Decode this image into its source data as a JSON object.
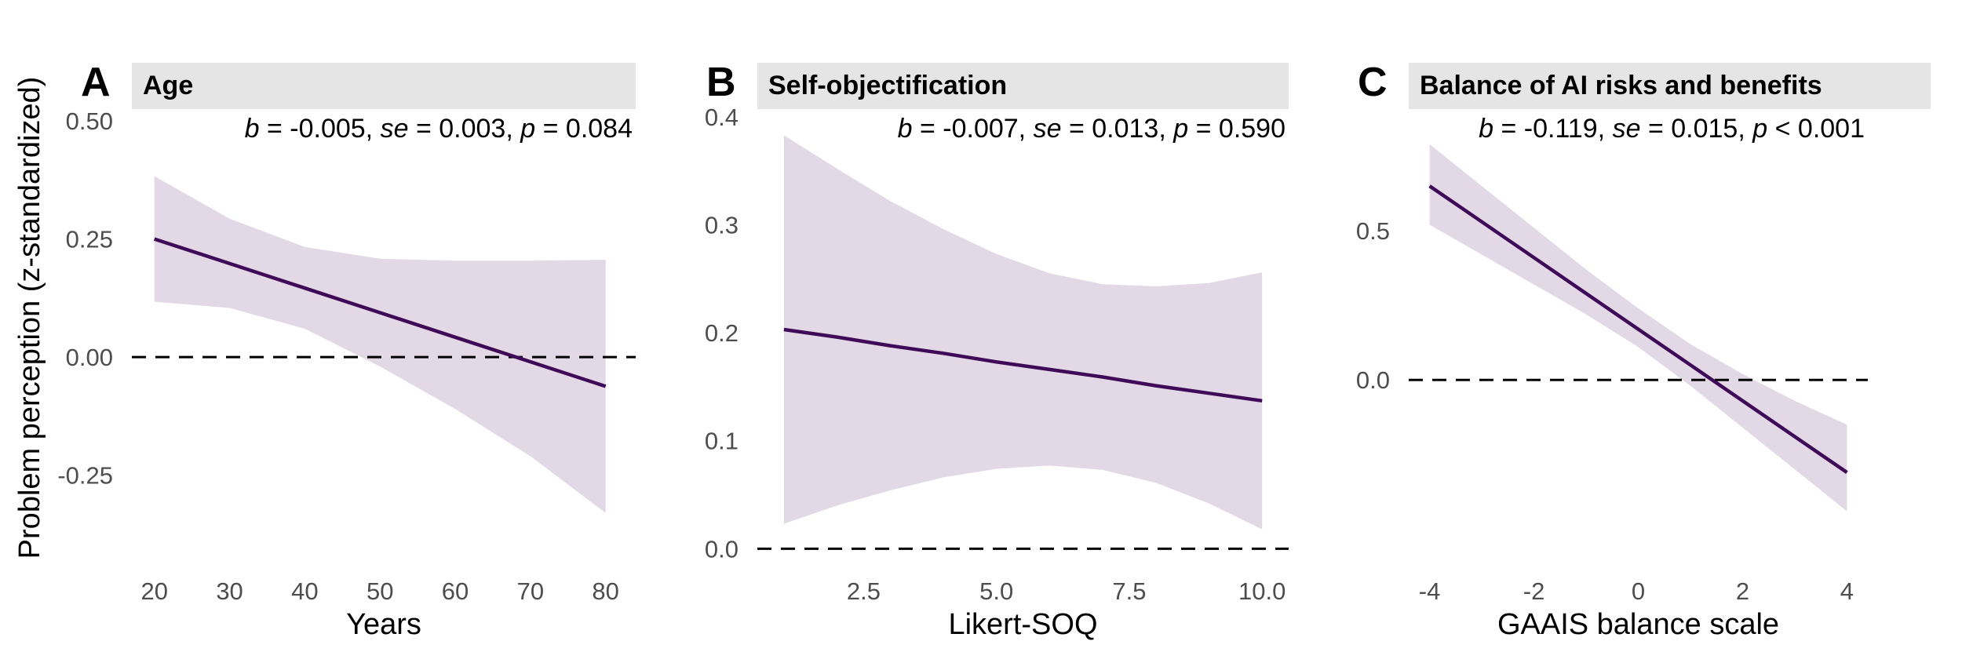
{
  "y_axis_label": "Problem perception (z-standardized)",
  "colors": {
    "line": "#3f0a57",
    "ribbon": "#e3d9e6",
    "strip": "#e5e5e5",
    "zero_line": "#000000"
  },
  "chart_data": [
    {
      "type": "line",
      "tag": "A",
      "title": "Age",
      "stat": {
        "b": "-0.005",
        "se": "0.003",
        "p_op": "=",
        "p": "0.084"
      },
      "xlabel": "Years",
      "ylabel": "Problem perception (z-standardized)",
      "xlim": [
        17,
        84
      ],
      "ylim": [
        -0.44,
        0.52
      ],
      "xticks": [
        20,
        30,
        40,
        50,
        60,
        70,
        80
      ],
      "xtick_labels": [
        "20",
        "30",
        "40",
        "50",
        "60",
        "70",
        "80"
      ],
      "yticks": [
        -0.25,
        0,
        0.25,
        0.5
      ],
      "ytick_labels": [
        "-0.25",
        "0.00",
        "0.25",
        "0.50"
      ],
      "reference_line": 0,
      "x": [
        20,
        30,
        40,
        50,
        60,
        70,
        80
      ],
      "fit": [
        0.25,
        0.198,
        0.146,
        0.094,
        0.042,
        -0.01,
        -0.062
      ],
      "lower": [
        0.117,
        0.104,
        0.06,
        -0.02,
        -0.11,
        -0.21,
        -0.33
      ],
      "upper": [
        0.383,
        0.293,
        0.233,
        0.208,
        0.204,
        0.204,
        0.206
      ]
    },
    {
      "type": "line",
      "tag": "B",
      "title": "Self-objectification",
      "stat": {
        "b": "-0.007",
        "se": "0.013",
        "p_op": "=",
        "p": "0.590"
      },
      "xlabel": "Likert-SOQ",
      "ylabel": "",
      "xlim": [
        0.5,
        10.5
      ],
      "ylim": [
        -0.015,
        0.405
      ],
      "xticks": [
        2.5,
        5,
        7.5,
        10
      ],
      "xtick_labels": [
        "2.5",
        "5.0",
        "7.5",
        "10.0"
      ],
      "yticks": [
        0,
        0.1,
        0.2,
        0.3,
        0.4
      ],
      "ytick_labels": [
        "0.0",
        "0.1",
        "0.2",
        "0.3",
        "0.4"
      ],
      "reference_line": 0,
      "x": [
        1,
        2,
        3,
        4,
        5,
        6,
        7,
        8,
        9,
        10
      ],
      "fit": [
        0.203,
        0.196,
        0.188,
        0.181,
        0.173,
        0.166,
        0.159,
        0.151,
        0.144,
        0.137
      ],
      "lower": [
        0.023,
        0.04,
        0.054,
        0.066,
        0.074,
        0.077,
        0.073,
        0.061,
        0.042,
        0.018
      ],
      "upper": [
        0.383,
        0.352,
        0.322,
        0.296,
        0.273,
        0.255,
        0.245,
        0.243,
        0.246,
        0.256
      ]
    },
    {
      "type": "line",
      "tag": "C",
      "title": "Balance of AI  risks and benefits",
      "stat": {
        "b": "-0.119",
        "se": "0.015",
        "p_op": "<",
        "p": "0.001"
      },
      "xlabel": "GAAIS balance scale",
      "ylabel": "",
      "xlim": [
        -4.4,
        4.4
      ],
      "ylim": [
        -0.62,
        0.9
      ],
      "xticks": [
        -4,
        -2,
        0,
        2,
        4
      ],
      "xtick_labels": [
        "-4",
        "-2",
        "0",
        "2",
        "4"
      ],
      "yticks": [
        0,
        0.5
      ],
      "ytick_labels": [
        "0.0",
        "0.5"
      ],
      "reference_line": 0,
      "x": [
        -4,
        -3,
        -2,
        -1,
        0,
        1,
        2,
        3,
        4
      ],
      "fit": [
        0.65,
        0.53,
        0.41,
        0.29,
        0.17,
        0.05,
        -0.07,
        -0.19,
        -0.31
      ],
      "lower": [
        0.52,
        0.42,
        0.32,
        0.22,
        0.11,
        -0.02,
        -0.16,
        -0.3,
        -0.44
      ],
      "upper": [
        0.79,
        0.65,
        0.51,
        0.37,
        0.24,
        0.12,
        0.02,
        -0.07,
        -0.15
      ]
    }
  ]
}
